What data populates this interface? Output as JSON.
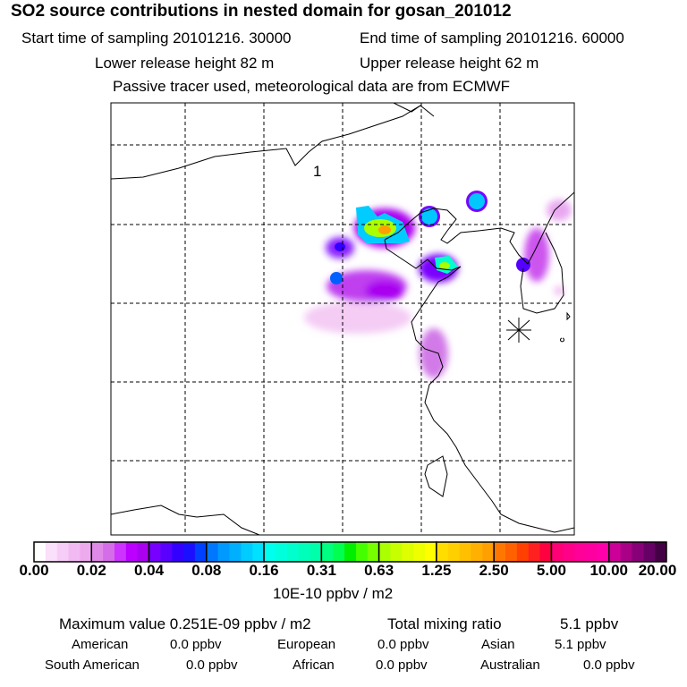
{
  "title": "SO2 source contributions in nested domain for gosan_201012",
  "start_label": "Start time of sampling 20101216. 30000",
  "end_label": "End time of sampling 20101216. 60000",
  "lower_label": "Lower release height   82 m",
  "upper_label": "Upper release height   62 m",
  "tracer_note": "Passive tracer used, meteorological data are from ECMWF",
  "map": {
    "marker_label": "1",
    "receptor_icon": "asterisk-icon"
  },
  "colorbar": {
    "ticks": [
      "0.00",
      "0.02",
      "0.04",
      "0.08",
      "0.16",
      "0.31",
      "0.63",
      "1.25",
      "2.50",
      "5.00",
      "10.00",
      "20.00"
    ],
    "segments": [
      [
        "#ffffff",
        "#fbe0fb",
        "#f6cdf6",
        "#f2baf2",
        "#eeaaee"
      ],
      [
        "#e08ae8",
        "#d56ce8",
        "#cc33ff",
        "#bb00ff",
        "#aa00f0"
      ],
      [
        "#7700ff",
        "#5a00ff",
        "#3300ff",
        "#1a10ff",
        "#0040ff"
      ],
      [
        "#0077ff",
        "#0099ff",
        "#00b0ff",
        "#00ccff",
        "#00e0ff"
      ],
      [
        "#00ffee",
        "#00ffdd",
        "#00ffcc",
        "#00ffbb",
        "#00ffaa"
      ],
      [
        "#00ff80",
        "#00ff50",
        "#00ee00",
        "#44ff00",
        "#77ff00"
      ],
      [
        "#aaff00",
        "#c8ff00",
        "#ddff00",
        "#eeff00",
        "#ffff00"
      ],
      [
        "#ffdd00",
        "#ffd000",
        "#ffc000",
        "#ffb000",
        "#ffa000"
      ],
      [
        "#ff7700",
        "#ff6000",
        "#ff4000",
        "#ff2020",
        "#ff0040"
      ],
      [
        "#ff0077",
        "#ff0088",
        "#ff0099",
        "#ff00a0",
        "#ff00aa"
      ],
      [
        "#cc0099",
        "#aa0088",
        "#880077",
        "#660066",
        "#440044"
      ]
    ],
    "units": "10E-10 ppbv / m2"
  },
  "summary": {
    "max_label": "Maximum value  0.251E-09 ppbv / m2",
    "total_label": "Total mixing ratio",
    "total_value": "5.1 ppbv",
    "regions": [
      {
        "name": "American",
        "value": "0.0 ppbv"
      },
      {
        "name": "European",
        "value": "0.0 ppbv"
      },
      {
        "name": "Asian",
        "value": "5.1 ppbv"
      },
      {
        "name": "South American",
        "value": "0.0 ppbv"
      },
      {
        "name": "African",
        "value": "0.0 ppbv"
      },
      {
        "name": "Australian",
        "value": "0.0 ppbv"
      }
    ]
  }
}
